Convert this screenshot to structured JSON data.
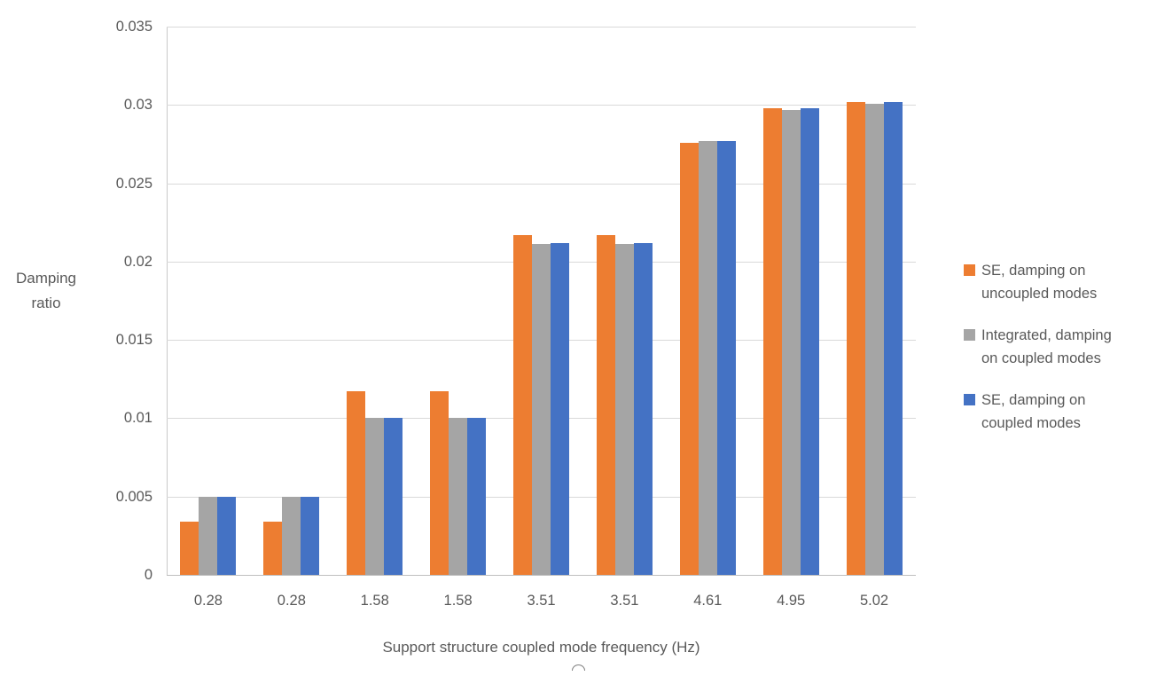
{
  "chart_data": {
    "type": "bar",
    "title": "",
    "xlabel": "Support structure coupled mode frequency (Hz)",
    "ylabel": "Damping ratio",
    "categories": [
      "0.28",
      "0.28",
      "1.58",
      "1.58",
      "3.51",
      "3.51",
      "4.61",
      "4.95",
      "5.02"
    ],
    "series": [
      {
        "name": "SE, damping on uncoupled modes",
        "legend_lines": [
          "SE, damping on",
          "uncoupled modes"
        ],
        "color": "#ED7D31",
        "values": [
          0.0034,
          0.0034,
          0.0117,
          0.0117,
          0.0217,
          0.0217,
          0.0276,
          0.0298,
          0.0302
        ]
      },
      {
        "name": "Integrated, damping on coupled modes",
        "legend_lines": [
          "Integrated, damping",
          "on coupled modes"
        ],
        "color": "#A5A5A5",
        "values": [
          0.005,
          0.005,
          0.01,
          0.01,
          0.0211,
          0.0211,
          0.0277,
          0.0297,
          0.0301
        ]
      },
      {
        "name": "SE, damping on coupled modes",
        "legend_lines": [
          "SE, damping on",
          "coupled modes"
        ],
        "color": "#4472C4",
        "values": [
          0.005,
          0.005,
          0.01,
          0.01,
          0.0212,
          0.0212,
          0.0277,
          0.0298,
          0.0302
        ]
      }
    ],
    "ylim": [
      0,
      0.035
    ],
    "ytick_step": 0.005,
    "grid": true,
    "legend_position": "right"
  },
  "style": {
    "gridline_color": "#D9D9D9",
    "axis_line_color": "#BFBFBF",
    "text_color": "#595959",
    "background": "#FFFFFF"
  }
}
